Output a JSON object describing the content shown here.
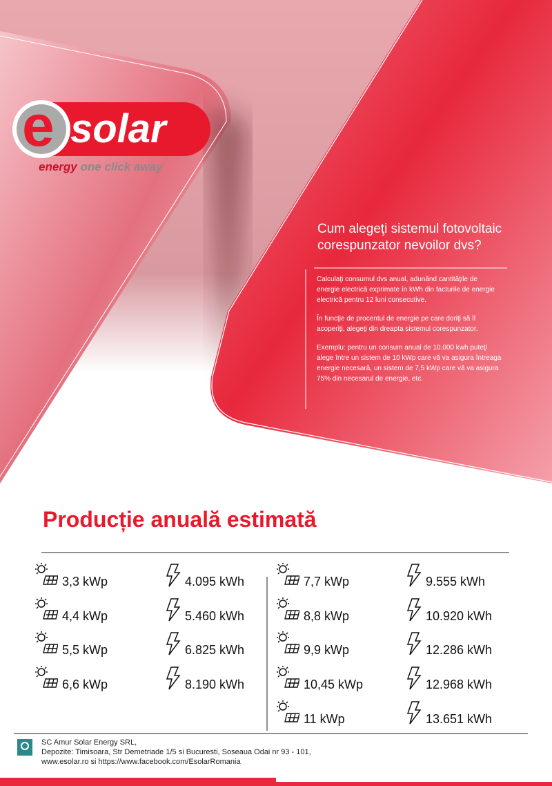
{
  "logo": {
    "mark": "e",
    "name": "solar",
    "tagline_1": "energy",
    "tagline_2": "one click away"
  },
  "intro": {
    "title_lines": [
      "Cum alegeţi sistemul fotovoltaic",
      "corespunzator nevoilor dvs?"
    ],
    "paragraphs": [
      "Calculaţi consumul dvs anual, adunând cantităţile de energie electrică exprimate în kWh din facturile de energie electrică pentru 12 luni consecutive.",
      "În funcţie de procentul de energie pe care doriţi să îl acoperiţi, alegeţi din dreapta sistemul corespunzator.",
      "Exemplu: pentru un consum anual de 10.000 kwh puteţi alege între un sistem de 10 kWp care vă va asigura întreaga energie necesară, un sistem de 7,5 kWp care vă va asigura 75% din necesarul de energie, etc."
    ]
  },
  "production": {
    "title": "Producție anuală estimată",
    "left": [
      {
        "power": "3,3 kWp",
        "energy": "4.095 kWh"
      },
      {
        "power": "4,4 kWp",
        "energy": "5.460 kWh"
      },
      {
        "power": "5,5 kWp",
        "energy": "6.825 kWh"
      },
      {
        "power": "6,6 kWp",
        "energy": "8.190 kWh"
      }
    ],
    "right": [
      {
        "power": "7,7 kWp",
        "energy": "9.555 kWh"
      },
      {
        "power": "8,8 kWp",
        "energy": "10.920 kWh"
      },
      {
        "power": "9,9 kWp",
        "energy": "12.286 kWh"
      },
      {
        "power": "10,45 kWp",
        "energy": "12.968 kWh"
      },
      {
        "power": "11 kWp",
        "energy": "13.651 kWh"
      }
    ]
  },
  "footer": {
    "lines": [
      "SC Amur Solar Energy SRL,",
      "Depozite: Timisoara, Str Demetriade 1/5 si Bucuresti, Soseaua Odai nr 93 - 101,",
      "www.esolar.ro si https://www.facebook.com/EsolarRomania"
    ]
  }
}
